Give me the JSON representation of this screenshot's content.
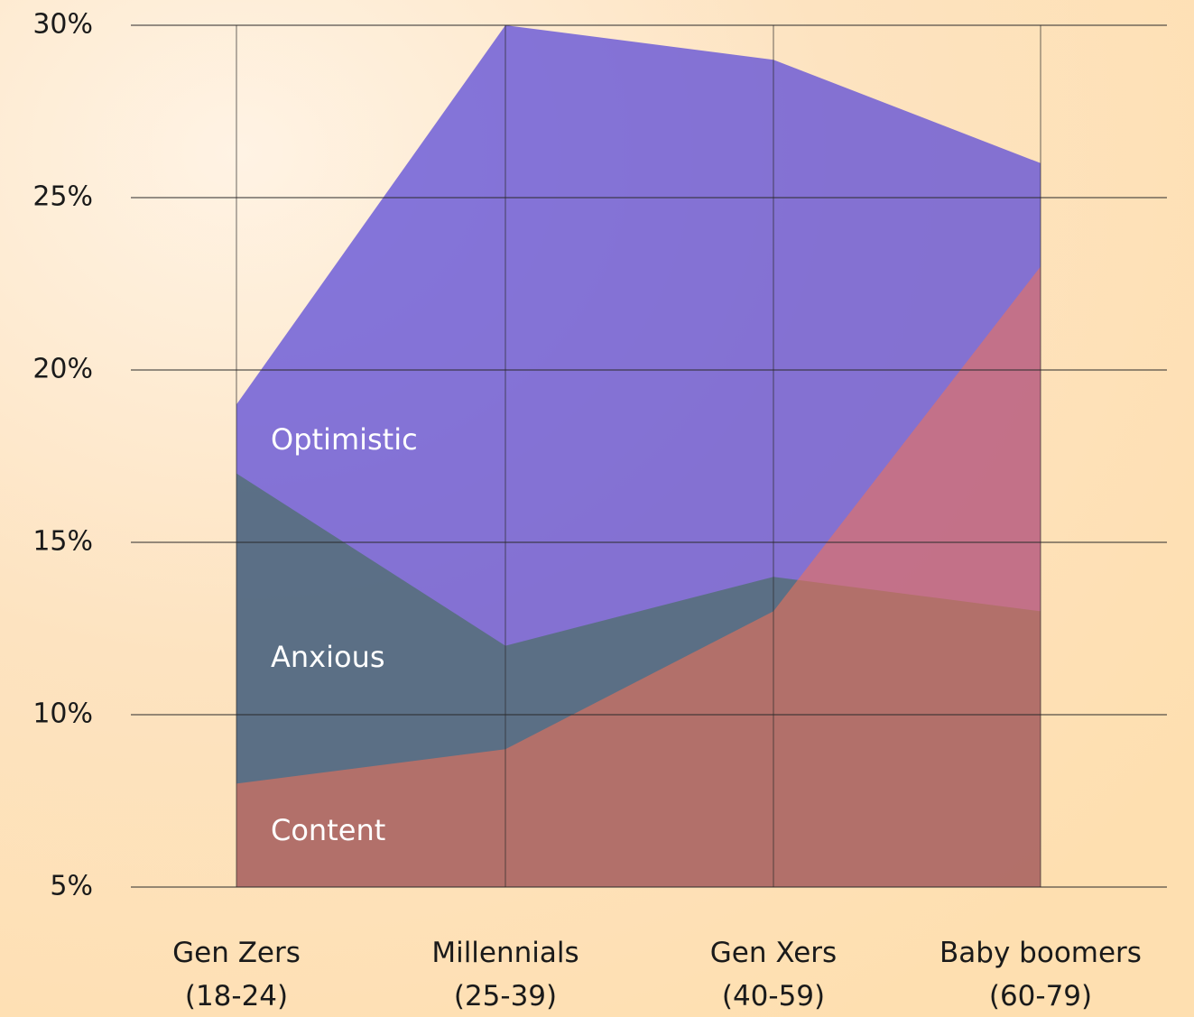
{
  "chart_data": {
    "type": "area",
    "categories": [
      "Gen Zers\n(18-24)",
      "Millennials\n(25-39)",
      "Gen Xers\n(40-59)",
      "Baby boomers\n(60-79)"
    ],
    "series": [
      {
        "name": "Optimistic",
        "color": "#5b4bd8",
        "values": [
          19,
          30,
          29,
          26
        ]
      },
      {
        "name": "Anxious",
        "color": "#3f6e52",
        "values": [
          17,
          12,
          14,
          13
        ]
      },
      {
        "name": "Content",
        "color": "#ec7258",
        "values": [
          8,
          9,
          13,
          23
        ]
      }
    ],
    "ylim": [
      5,
      30
    ],
    "yticks": [
      {
        "value": 5,
        "label": "5%"
      },
      {
        "value": 10,
        "label": "10%"
      },
      {
        "value": 15,
        "label": "15%"
      },
      {
        "value": 20,
        "label": "20%"
      },
      {
        "value": 25,
        "label": "25%"
      },
      {
        "value": 30,
        "label": "30%"
      }
    ],
    "grid": true
  }
}
